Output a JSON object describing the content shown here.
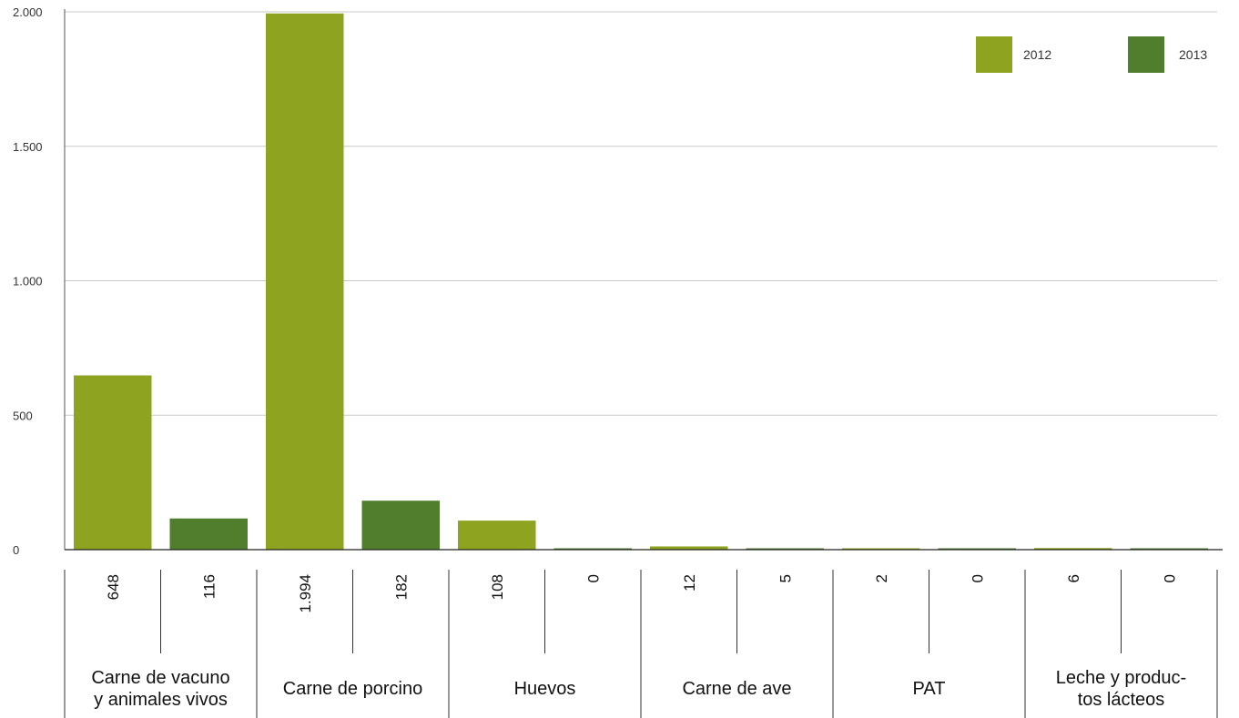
{
  "chart_data": {
    "type": "bar",
    "categories": [
      [
        "Carne de vacuno",
        "y animales vivos"
      ],
      [
        "Carne de porcino"
      ],
      [
        "Huevos"
      ],
      [
        "Carne de ave"
      ],
      [
        "PAT"
      ],
      [
        "Leche y produc-",
        "tos lácteos"
      ]
    ],
    "series": [
      {
        "name": "2012",
        "color": "#8ea31f",
        "values": [
          648,
          1994,
          108,
          12,
          2,
          6
        ],
        "labels": [
          "648",
          "1.994",
          "108",
          "12",
          "2",
          "6"
        ]
      },
      {
        "name": "2013",
        "color": "#517e2d",
        "values": [
          116,
          182,
          0,
          5,
          0,
          0
        ],
        "labels": [
          "116",
          "182",
          "0",
          "5",
          "0",
          "0"
        ]
      }
    ],
    "y_ticks": [
      0,
      500,
      1000,
      1500,
      2000
    ],
    "y_tick_labels": [
      "0",
      "500",
      "1.000",
      "1.500",
      "2.000"
    ],
    "ylim": [
      0,
      2000
    ],
    "grid": true,
    "legend_position": "top-right",
    "title": "",
    "xlabel": "",
    "ylabel": ""
  }
}
